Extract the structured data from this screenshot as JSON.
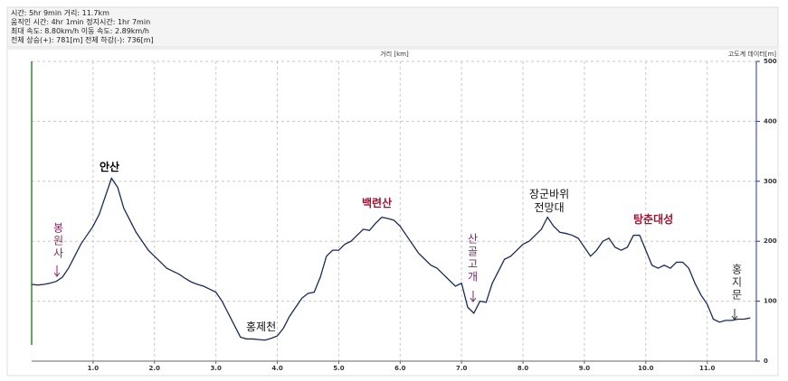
{
  "chart_data": {
    "type": "line",
    "stats": [
      "시간: 5hr 9min  거리: 11.7km",
      "움직인 시간: 4hr 1min  정지시간: 1hr 7min",
      "최대 속도: 8.80km/h  이동 속도: 2.89km/h",
      "전체 상승(+): 781[m]  전체 하강(-): 736[m]"
    ],
    "x_label": "거리 [km]",
    "y_label": "고도계 데이터[m]",
    "annotations": [
      "봉원사",
      "안산",
      "홍제천",
      "백련산",
      "산골고개",
      "장군바위\n전망대",
      "탕춘대성",
      "홍지문"
    ],
    "x": [
      0,
      0.1,
      0.2,
      0.3,
      0.4,
      0.5,
      0.6,
      0.7,
      0.8,
      0.9,
      1.0,
      1.1,
      1.2,
      1.3,
      1.4,
      1.5,
      1.6,
      1.7,
      1.8,
      1.9,
      2.0,
      2.1,
      2.2,
      2.3,
      2.4,
      2.5,
      2.6,
      2.7,
      2.8,
      2.9,
      3.0,
      3.1,
      3.2,
      3.3,
      3.4,
      3.5,
      3.6,
      3.7,
      3.8,
      3.9,
      4.0,
      4.1,
      4.2,
      4.3,
      4.4,
      4.5,
      4.6,
      4.7,
      4.8,
      4.9,
      5.0,
      5.1,
      5.2,
      5.3,
      5.4,
      5.5,
      5.6,
      5.7,
      5.8,
      5.9,
      6.0,
      6.1,
      6.2,
      6.3,
      6.4,
      6.5,
      6.6,
      6.7,
      6.8,
      6.9,
      7.0,
      7.1,
      7.2,
      7.3,
      7.4,
      7.5,
      7.6,
      7.7,
      7.8,
      7.9,
      8.0,
      8.1,
      8.2,
      8.3,
      8.4,
      8.5,
      8.6,
      8.7,
      8.8,
      8.9,
      9.0,
      9.1,
      9.2,
      9.3,
      9.4,
      9.5,
      9.6,
      9.7,
      9.8,
      9.9,
      10.0,
      10.1,
      10.2,
      10.3,
      10.4,
      10.5,
      10.6,
      10.7,
      10.8,
      10.9,
      11.0,
      11.1,
      11.2,
      11.3,
      11.4,
      11.5,
      11.6,
      11.7
    ],
    "series": [
      {
        "name": "고도",
        "color": "#1a2a5a",
        "values": [
          128,
          127,
          128,
          130,
          133,
          140,
          155,
          175,
          195,
          210,
          225,
          245,
          275,
          305,
          290,
          255,
          235,
          215,
          200,
          185,
          175,
          165,
          155,
          150,
          145,
          138,
          132,
          128,
          125,
          120,
          115,
          100,
          80,
          60,
          40,
          37,
          37,
          36,
          35,
          38,
          42,
          55,
          75,
          90,
          105,
          113,
          115,
          140,
          175,
          185,
          185,
          195,
          200,
          210,
          220,
          218,
          230,
          240,
          238,
          235,
          225,
          210,
          195,
          180,
          170,
          160,
          155,
          145,
          135,
          125,
          130,
          90,
          80,
          100,
          98,
          130,
          150,
          170,
          175,
          185,
          195,
          200,
          210,
          220,
          240,
          225,
          215,
          213,
          210,
          205,
          190,
          175,
          185,
          200,
          205,
          190,
          185,
          190,
          210,
          210,
          185,
          160,
          155,
          160,
          155,
          165,
          165,
          155,
          130,
          110,
          95,
          70,
          65,
          68,
          68,
          70,
          70,
          72
        ]
      }
    ],
    "xlim": [
      0,
      11.8
    ],
    "ylim": [
      0,
      500
    ],
    "xticks": [
      {
        "value": 1,
        "label": "1.0"
      },
      {
        "value": 2,
        "label": "2.0"
      },
      {
        "value": 3,
        "label": "3.0"
      },
      {
        "value": 4,
        "label": "4.0"
      },
      {
        "value": 5,
        "label": "5.0"
      },
      {
        "value": 6,
        "label": "6.0"
      },
      {
        "value": 7,
        "label": "7.0"
      },
      {
        "value": 8,
        "label": "8.0"
      },
      {
        "value": 9,
        "label": "9.0"
      },
      {
        "value": 10,
        "label": "10.0"
      },
      {
        "value": 11,
        "label": "11.0"
      }
    ],
    "yticks": [
      0,
      100,
      200,
      300,
      400,
      500
    ],
    "grid": true
  }
}
